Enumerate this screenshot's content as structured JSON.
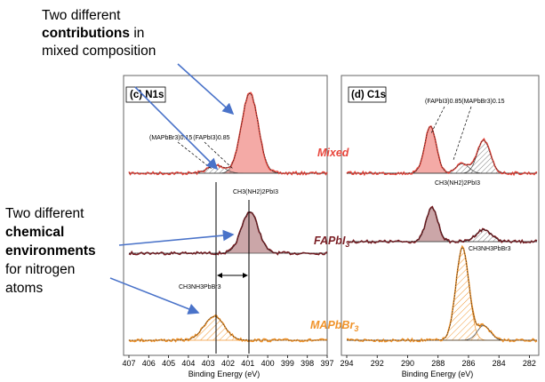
{
  "annotations": {
    "top": {
      "line1": "Two different",
      "line2_bold": "contributions",
      "line2_rest": " in",
      "line3": "mixed composition"
    },
    "left": {
      "line1": "Two different",
      "line2_bold": "chemical",
      "line3_bold": "environments",
      "line4": "for nitrogen",
      "line5": "atoms"
    }
  },
  "colors": {
    "mixed": "#e8463c",
    "mixed_fill": "#f4a6a2",
    "fapbi3": "#7a1e24",
    "fapbi3_fill": "#c9a2a4",
    "mapbbr3": "#f0932a",
    "arrow": "#4a73c9"
  },
  "chart_data": [
    {
      "type": "line",
      "title": "(c) N1s",
      "xlabel": "Binding Energy (eV)",
      "x_reversed": true,
      "xlim": [
        407,
        397
      ],
      "xticks": [
        "407",
        "406",
        "405",
        "404",
        "403",
        "402",
        "401",
        "400",
        "399",
        "398",
        "397"
      ],
      "series": [
        {
          "name": "Mixed",
          "peaks": [
            {
              "center": 400.9,
              "fwhm": 1.0,
              "height": 1.0,
              "label": "(FAPbI3)0.85"
            },
            {
              "center": 402.6,
              "fwhm": 1.0,
              "height": 0.1,
              "label": "(MAPbBr3)0.15"
            }
          ]
        },
        {
          "name": "FAPbI3",
          "peaks": [
            {
              "center": 400.9,
              "fwhm": 1.0,
              "height": 0.85,
              "label": "CH3(NH2)2PbI3"
            }
          ]
        },
        {
          "name": "MAPbBr3",
          "peaks": [
            {
              "center": 402.7,
              "fwhm": 1.2,
              "height": 0.6,
              "label": "CH3NH3PbBr3"
            }
          ]
        }
      ],
      "markers": {
        "vlines": [
          402.7,
          400.9
        ]
      },
      "peak_labels": {
        "mixed_ma": "(MAPbBr3)0.15",
        "mixed_fa": "(FAPbI3)0.85",
        "fa": "CH3(NH2)2PbI3",
        "ma": "CH3NH3PbBr3"
      }
    },
    {
      "type": "line",
      "title": "(d) C1s",
      "xlabel": "Binding Energy (eV)",
      "x_reversed": true,
      "xlim": [
        294,
        281.5
      ],
      "xticks": [
        "294",
        "292",
        "290",
        "288",
        "286",
        "284",
        "282"
      ],
      "series": [
        {
          "name": "Mixed",
          "peaks": [
            {
              "center": 288.5,
              "fwhm": 0.9,
              "height": 0.88,
              "label": "(FAPbI3)0.85"
            },
            {
              "center": 286.4,
              "fwhm": 1.0,
              "height": 0.18,
              "label": "(MAPbBr3)0.15"
            },
            {
              "center": 285.0,
              "fwhm": 1.0,
              "height": 0.62
            }
          ]
        },
        {
          "name": "FAPbI3",
          "peaks": [
            {
              "center": 288.4,
              "fwhm": 0.9,
              "height": 0.85,
              "label": "CH3(NH2)2PbI3"
            },
            {
              "center": 285.0,
              "fwhm": 1.2,
              "height": 0.3
            }
          ]
        },
        {
          "name": "MAPbBr3",
          "peaks": [
            {
              "center": 286.4,
              "fwhm": 1.0,
              "height": 0.95,
              "label": "CH3NH3PbBr3"
            },
            {
              "center": 285.0,
              "fwhm": 1.0,
              "height": 0.15
            }
          ]
        }
      ],
      "peak_labels": {
        "top": "(FAPbI3)0.85(MAPbBr3)0.15",
        "fa": "CH3(NH2)2PbI3",
        "ma": "CH3NH3PbBr3"
      }
    }
  ],
  "sample_labels": {
    "mixed": "Mixed",
    "fa": "FAPbI",
    "fa_sub": "3",
    "ma": "MAPbBr",
    "ma_sub": "3"
  }
}
